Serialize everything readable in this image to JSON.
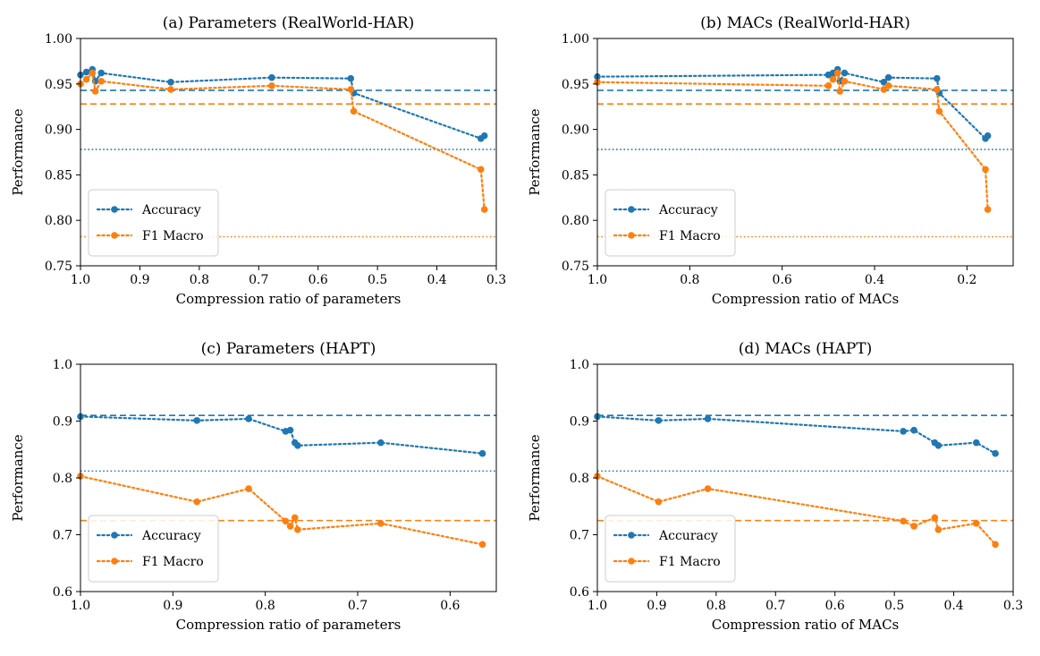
{
  "colors": {
    "accuracy": "#1f77b4",
    "f1": "#ff7f0e",
    "axis": "#000000",
    "legend_border": "#cccccc"
  },
  "chart_data": [
    {
      "type": "line",
      "title": "(a) Parameters (RealWorld-HAR)",
      "xlabel": "Compression ratio of parameters",
      "ylabel": "Performance",
      "xlim": [
        1.0,
        0.3
      ],
      "ylim": [
        0.75,
        1.0
      ],
      "xticks": [
        1.0,
        0.9,
        0.8,
        0.7,
        0.6,
        0.5,
        0.4,
        0.3
      ],
      "xtick_labels": [
        "1.0",
        "0.9",
        "0.8",
        "0.7",
        "0.6",
        "0.5",
        "0.4",
        "0.3"
      ],
      "yticks": [
        0.75,
        0.8,
        0.85,
        0.9,
        0.95,
        1.0
      ],
      "ytick_labels": [
        "0.75",
        "0.80",
        "0.85",
        "0.90",
        "0.95",
        "1.00"
      ],
      "legend": {
        "position": "lower-left",
        "entries": [
          "Accuracy",
          "F1 Macro"
        ]
      },
      "series": [
        {
          "name": "Accuracy",
          "color_key": "accuracy",
          "x": [
            1.0,
            0.99,
            0.98,
            0.975,
            0.965,
            0.848,
            0.678,
            0.545,
            0.54,
            0.326,
            0.32
          ],
          "y": [
            0.96,
            0.963,
            0.966,
            0.953,
            0.962,
            0.952,
            0.957,
            0.956,
            0.94,
            0.89,
            0.893
          ]
        },
        {
          "name": "F1 Macro",
          "color_key": "f1",
          "x": [
            1.0,
            0.99,
            0.98,
            0.975,
            0.965,
            0.848,
            0.678,
            0.545,
            0.54,
            0.326,
            0.32
          ],
          "y": [
            0.95,
            0.955,
            0.962,
            0.942,
            0.953,
            0.944,
            0.948,
            0.944,
            0.92,
            0.856,
            0.812
          ]
        }
      ],
      "hlines": [
        {
          "y": 0.943,
          "style": "dashed",
          "color_key": "accuracy"
        },
        {
          "y": 0.928,
          "style": "dashed",
          "color_key": "f1"
        },
        {
          "y": 0.878,
          "style": "dotted",
          "color_key": "accuracy"
        },
        {
          "y": 0.782,
          "style": "dotted",
          "color_key": "f1"
        }
      ]
    },
    {
      "type": "line",
      "title": "(b) MACs (RealWorld-HAR)",
      "xlabel": "Compression ratio of MACs",
      "ylabel": "Performance",
      "xlim": [
        1.0,
        0.1
      ],
      "ylim": [
        0.75,
        1.0
      ],
      "xticks": [
        1.0,
        0.8,
        0.6,
        0.4,
        0.2
      ],
      "xtick_labels": [
        "1.0",
        "0.8",
        "0.6",
        "0.4",
        "0.2"
      ],
      "yticks": [
        0.75,
        0.8,
        0.85,
        0.9,
        0.95,
        1.0
      ],
      "ytick_labels": [
        "0.75",
        "0.80",
        "0.85",
        "0.90",
        "0.95",
        "1.00"
      ],
      "legend": {
        "position": "lower-left",
        "entries": [
          "Accuracy",
          "F1 Macro"
        ]
      },
      "series": [
        {
          "name": "Accuracy",
          "color_key": "accuracy",
          "x": [
            1.0,
            0.5,
            0.49,
            0.48,
            0.475,
            0.465,
            0.38,
            0.37,
            0.265,
            0.26,
            0.16,
            0.155
          ],
          "y": [
            0.958,
            0.96,
            0.962,
            0.966,
            0.953,
            0.962,
            0.952,
            0.957,
            0.956,
            0.94,
            0.89,
            0.893
          ]
        },
        {
          "name": "F1 Macro",
          "color_key": "f1",
          "x": [
            1.0,
            0.5,
            0.49,
            0.48,
            0.475,
            0.465,
            0.38,
            0.37,
            0.265,
            0.26,
            0.16,
            0.155
          ],
          "y": [
            0.952,
            0.948,
            0.955,
            0.962,
            0.942,
            0.953,
            0.944,
            0.948,
            0.944,
            0.92,
            0.856,
            0.812
          ]
        }
      ],
      "hlines": [
        {
          "y": 0.943,
          "style": "dashed",
          "color_key": "accuracy"
        },
        {
          "y": 0.928,
          "style": "dashed",
          "color_key": "f1"
        },
        {
          "y": 0.878,
          "style": "dotted",
          "color_key": "accuracy"
        },
        {
          "y": 0.782,
          "style": "dotted",
          "color_key": "f1"
        }
      ]
    },
    {
      "type": "line",
      "title": "(c) Parameters (HAPT)",
      "xlabel": "Compression ratio of parameters",
      "ylabel": "Performance",
      "xlim": [
        1.0,
        0.55
      ],
      "ylim": [
        0.6,
        1.0
      ],
      "xticks": [
        1.0,
        0.9,
        0.8,
        0.7,
        0.6
      ],
      "xtick_labels": [
        "1.0",
        "0.9",
        "0.8",
        "0.7",
        "0.6"
      ],
      "yticks": [
        0.6,
        0.7,
        0.8,
        0.9,
        1.0
      ],
      "ytick_labels": [
        "0.6",
        "0.7",
        "0.8",
        "0.9",
        "1.0"
      ],
      "legend": {
        "position": "lower-left",
        "entries": [
          "Accuracy",
          "F1 Macro"
        ]
      },
      "series": [
        {
          "name": "Accuracy",
          "color_key": "accuracy",
          "x": [
            1.0,
            0.874,
            0.818,
            0.778,
            0.773,
            0.768,
            0.765,
            0.675,
            0.565
          ],
          "y": [
            0.908,
            0.901,
            0.904,
            0.882,
            0.884,
            0.862,
            0.857,
            0.862,
            0.843
          ]
        },
        {
          "name": "F1 Macro",
          "color_key": "f1",
          "x": [
            1.0,
            0.874,
            0.818,
            0.778,
            0.773,
            0.768,
            0.765,
            0.675,
            0.565
          ],
          "y": [
            0.803,
            0.758,
            0.781,
            0.724,
            0.715,
            0.73,
            0.709,
            0.72,
            0.683
          ]
        }
      ],
      "hlines": [
        {
          "y": 0.91,
          "style": "dashed",
          "color_key": "accuracy"
        },
        {
          "y": 0.725,
          "style": "dashed",
          "color_key": "f1"
        },
        {
          "y": 0.812,
          "style": "dotted",
          "color_key": "accuracy"
        }
      ]
    },
    {
      "type": "line",
      "title": "(d) MACs (HAPT)",
      "xlabel": "Compression ratio of MACs",
      "ylabel": "Performance",
      "xlim": [
        1.0,
        0.3
      ],
      "ylim": [
        0.6,
        1.0
      ],
      "xticks": [
        1.0,
        0.9,
        0.8,
        0.7,
        0.6,
        0.5,
        0.4,
        0.3
      ],
      "xtick_labels": [
        "1.0",
        "0.9",
        "0.8",
        "0.7",
        "0.6",
        "0.5",
        "0.4",
        "0.3"
      ],
      "yticks": [
        0.6,
        0.7,
        0.8,
        0.9,
        1.0
      ],
      "ytick_labels": [
        "0.6",
        "0.7",
        "0.8",
        "0.9",
        "1.0"
      ],
      "legend": {
        "position": "lower-left",
        "entries": [
          "Accuracy",
          "F1 Macro"
        ]
      },
      "series": [
        {
          "name": "Accuracy",
          "color_key": "accuracy",
          "x": [
            1.0,
            0.897,
            0.814,
            0.485,
            0.467,
            0.432,
            0.426,
            0.362,
            0.33
          ],
          "y": [
            0.908,
            0.901,
            0.904,
            0.882,
            0.884,
            0.862,
            0.857,
            0.862,
            0.843
          ]
        },
        {
          "name": "F1 Macro",
          "color_key": "f1",
          "x": [
            1.0,
            0.897,
            0.814,
            0.485,
            0.467,
            0.432,
            0.426,
            0.362,
            0.33
          ],
          "y": [
            0.803,
            0.758,
            0.781,
            0.724,
            0.715,
            0.73,
            0.709,
            0.72,
            0.683
          ]
        }
      ],
      "hlines": [
        {
          "y": 0.91,
          "style": "dashed",
          "color_key": "accuracy"
        },
        {
          "y": 0.725,
          "style": "dashed",
          "color_key": "f1"
        },
        {
          "y": 0.812,
          "style": "dotted",
          "color_key": "accuracy"
        }
      ]
    }
  ]
}
